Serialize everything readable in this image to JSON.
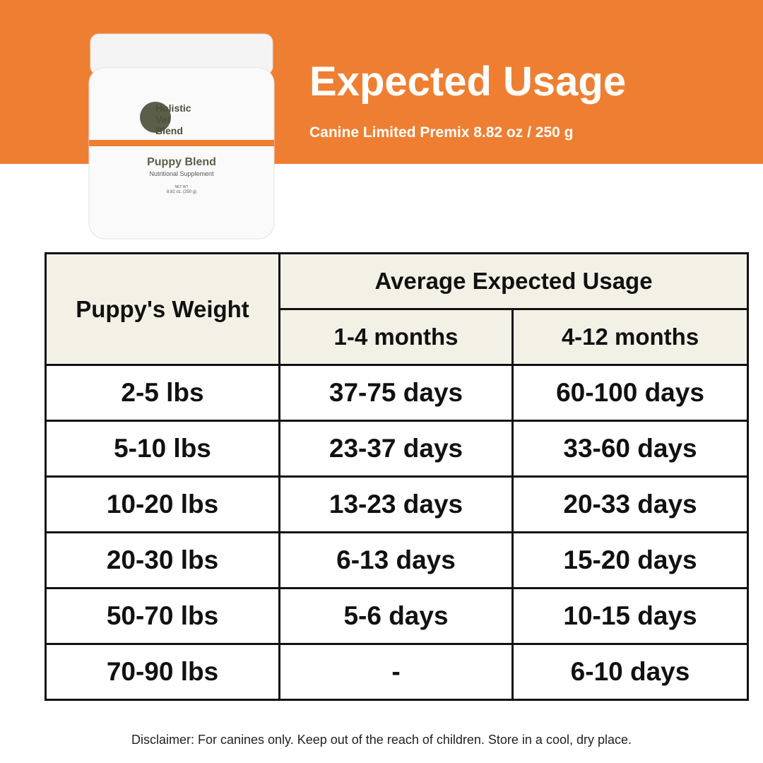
{
  "header": {
    "title": "Expected Usage",
    "subtitle": "Canine Limited Premix 8.82 oz / 250 g"
  },
  "product": {
    "brand_lines": [
      "Holistic",
      "Vet",
      "Blend"
    ],
    "name": "Puppy Blend",
    "description": "Nutritional Supplement",
    "net_wt_label": "NET WT",
    "net_wt": "8.82 oz. (250 g)"
  },
  "table": {
    "weight_header": "Puppy's Weight",
    "usage_header": "Average Expected Usage",
    "age_headers": [
      "1-4 months",
      "4-12 months"
    ],
    "rows": [
      [
        "2-5 lbs",
        "37-75 days",
        "60-100 days"
      ],
      [
        "5-10 lbs",
        "23-37 days",
        "33-60 days"
      ],
      [
        "10-20 lbs",
        "13-23 days",
        "20-33 days"
      ],
      [
        "20-30 lbs",
        "6-13 days",
        "15-20 days"
      ],
      [
        "50-70 lbs",
        "5-6 days",
        "10-15 days"
      ],
      [
        "70-90 lbs",
        "-",
        "6-10 days"
      ]
    ]
  },
  "disclaimer": "Disclaimer: For canines only. Keep out of the reach of children. Store in a cool, dry place."
}
